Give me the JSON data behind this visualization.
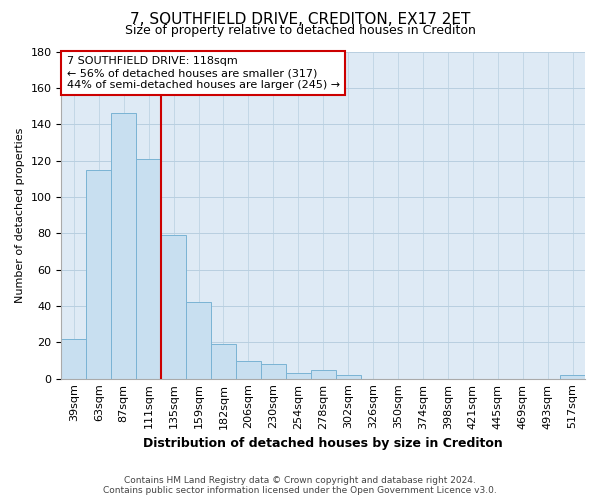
{
  "title": "7, SOUTHFIELD DRIVE, CREDITON, EX17 2ET",
  "subtitle": "Size of property relative to detached houses in Crediton",
  "xlabel": "Distribution of detached houses by size in Crediton",
  "ylabel": "Number of detached properties",
  "bin_labels": [
    "39sqm",
    "63sqm",
    "87sqm",
    "111sqm",
    "135sqm",
    "159sqm",
    "182sqm",
    "206sqm",
    "230sqm",
    "254sqm",
    "278sqm",
    "302sqm",
    "326sqm",
    "350sqm",
    "374sqm",
    "398sqm",
    "421sqm",
    "445sqm",
    "469sqm",
    "493sqm",
    "517sqm"
  ],
  "bar_heights": [
    22,
    115,
    146,
    121,
    79,
    42,
    19,
    10,
    8,
    3,
    5,
    2,
    0,
    0,
    0,
    0,
    0,
    0,
    0,
    0,
    2
  ],
  "bar_color": "#c8dff0",
  "bar_edge_color": "#7ab3d4",
  "plot_bg_color": "#deeaf5",
  "vline_x": 3.5,
  "vline_color": "#cc0000",
  "annotation_line1": "7 SOUTHFIELD DRIVE: 118sqm",
  "annotation_line2": "← 56% of detached houses are smaller (317)",
  "annotation_line3": "44% of semi-detached houses are larger (245) →",
  "annotation_box_color": "#ffffff",
  "annotation_box_edge": "#cc0000",
  "ylim": [
    0,
    180
  ],
  "yticks": [
    0,
    20,
    40,
    60,
    80,
    100,
    120,
    140,
    160,
    180
  ],
  "footer_line1": "Contains HM Land Registry data © Crown copyright and database right 2024.",
  "footer_line2": "Contains public sector information licensed under the Open Government Licence v3.0.",
  "background_color": "#ffffff",
  "grid_color": "#b8cfe0",
  "title_fontsize": 11,
  "subtitle_fontsize": 9,
  "xlabel_fontsize": 9,
  "ylabel_fontsize": 8,
  "tick_fontsize": 8,
  "annot_fontsize": 8
}
